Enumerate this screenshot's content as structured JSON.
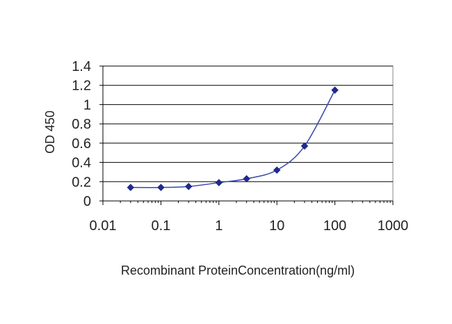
{
  "chart_data": {
    "type": "line",
    "title": "",
    "xlabel": "Recombinant ProteinConcentration(ng/ml)",
    "ylabel": "OD 450",
    "x_scale": "log",
    "xlim": [
      0.01,
      1000
    ],
    "ylim": [
      0,
      1.4
    ],
    "x_ticks": [
      "0.01",
      "0.1",
      "1",
      "10",
      "100",
      "1000"
    ],
    "y_ticks": [
      "0",
      "0.2",
      "0.4",
      "0.6",
      "0.8",
      "1",
      "1.2",
      "1.4"
    ],
    "grid": true,
    "legend": "none",
    "series": [
      {
        "x": [
          0.03,
          0.1,
          0.3,
          1,
          3,
          10,
          30,
          100
        ],
        "y": [
          0.14,
          0.14,
          0.15,
          0.19,
          0.23,
          0.32,
          0.57,
          1.15
        ]
      }
    ]
  },
  "colors": {
    "series": "#3a44b0",
    "marker": "#1f2a8c",
    "grid": "#000000",
    "plot_border": "#888888",
    "background": "#ffffff"
  }
}
